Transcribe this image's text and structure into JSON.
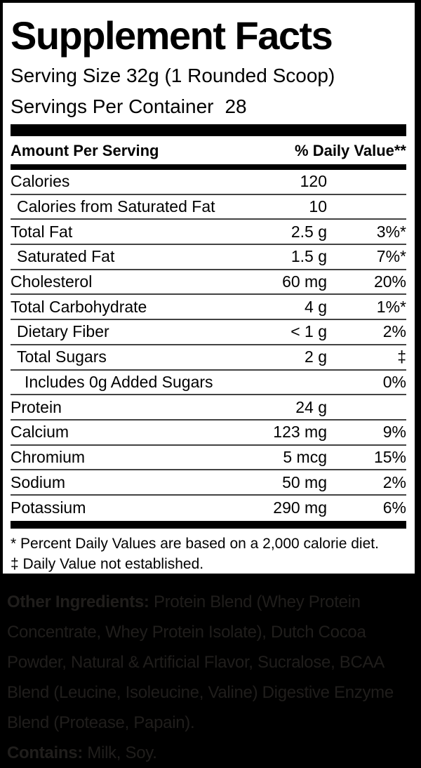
{
  "label": {
    "title": "Supplement Facts",
    "serving_size": "Serving Size 32g (1 Rounded Scoop)",
    "servings_label": "Servings Per Container",
    "servings_value": "28",
    "columns": {
      "amount_header": "Amount Per Serving",
      "dv_header": "% Daily Value**"
    },
    "rows": [
      {
        "label": "Calories",
        "amount": "120",
        "dv": ""
      },
      {
        "label": "Calories from Saturated Fat",
        "amount": "10",
        "dv": ""
      },
      {
        "label": "Total Fat",
        "amount": "2.5 g",
        "dv": "3%*"
      },
      {
        "label": "Saturated Fat",
        "amount": "1.5 g",
        "dv": "7%*"
      },
      {
        "label": "Cholesterol",
        "amount": "60 mg",
        "dv": "20%"
      },
      {
        "label": "Total Carbohydrate",
        "amount": "4 g",
        "dv": "1%*"
      },
      {
        "label": "Dietary Fiber",
        "amount": "< 1 g",
        "dv": "2%"
      },
      {
        "label": "Total Sugars",
        "amount": "2 g",
        "dv": "‡"
      },
      {
        "label": "Includes 0g Added Sugars",
        "amount": "",
        "dv": "0%"
      },
      {
        "label": "Protein",
        "amount": "24 g",
        "dv": ""
      },
      {
        "label": "Calcium",
        "amount": "123 mg",
        "dv": "9%"
      },
      {
        "label": "Chromium",
        "amount": "5 mcg",
        "dv": "15%"
      },
      {
        "label": "Sodium",
        "amount": "50 mg",
        "dv": "2%"
      },
      {
        "label": "Potassium",
        "amount": "290 mg",
        "dv": "6%"
      }
    ],
    "footnotes": [
      "* Percent Daily Values are based on a 2,000 calorie diet.",
      "‡ Daily Value not established."
    ]
  },
  "ingredients": {
    "other_label": "Other Ingredients:",
    "other_text": "Protein Blend (Whey Protein Concentrate, Whey Protein Isolate), Dutch Cocoa Powder, Natural & Artificial Flavor, Sucralose, BCAA Blend (Leucine, Isoleucine, Valine) Digestive Enzyme Blend (Protease, Papain).",
    "contains_label": "Contains:",
    "contains_text": "Milk, Soy."
  },
  "colors": {
    "page_bg": "#000000",
    "label_bg": "#ffffff",
    "bar": "#000000",
    "divider": "#434343",
    "ingredients_text": "#201e1c"
  }
}
